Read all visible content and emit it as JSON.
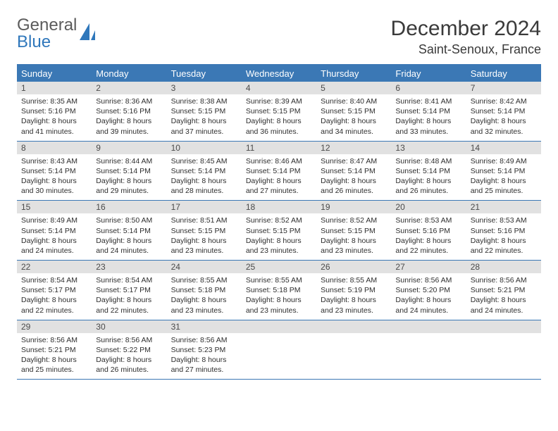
{
  "logo": {
    "text1": "General",
    "text2": "Blue"
  },
  "title": "December 2024",
  "location": "Saint-Senoux, France",
  "colors": {
    "header_bg": "#3b78b5",
    "daynum_bg": "#e1e1e1",
    "rule": "#3b78b5",
    "text": "#212121",
    "logo_gray": "#5b5b5b",
    "logo_blue": "#2f77bb"
  },
  "weekdays": [
    "Sunday",
    "Monday",
    "Tuesday",
    "Wednesday",
    "Thursday",
    "Friday",
    "Saturday"
  ],
  "weeks": [
    [
      {
        "n": "1",
        "sunrise": "Sunrise: 8:35 AM",
        "sunset": "Sunset: 5:16 PM",
        "day1": "Daylight: 8 hours",
        "day2": "and 41 minutes."
      },
      {
        "n": "2",
        "sunrise": "Sunrise: 8:36 AM",
        "sunset": "Sunset: 5:16 PM",
        "day1": "Daylight: 8 hours",
        "day2": "and 39 minutes."
      },
      {
        "n": "3",
        "sunrise": "Sunrise: 8:38 AM",
        "sunset": "Sunset: 5:15 PM",
        "day1": "Daylight: 8 hours",
        "day2": "and 37 minutes."
      },
      {
        "n": "4",
        "sunrise": "Sunrise: 8:39 AM",
        "sunset": "Sunset: 5:15 PM",
        "day1": "Daylight: 8 hours",
        "day2": "and 36 minutes."
      },
      {
        "n": "5",
        "sunrise": "Sunrise: 8:40 AM",
        "sunset": "Sunset: 5:15 PM",
        "day1": "Daylight: 8 hours",
        "day2": "and 34 minutes."
      },
      {
        "n": "6",
        "sunrise": "Sunrise: 8:41 AM",
        "sunset": "Sunset: 5:14 PM",
        "day1": "Daylight: 8 hours",
        "day2": "and 33 minutes."
      },
      {
        "n": "7",
        "sunrise": "Sunrise: 8:42 AM",
        "sunset": "Sunset: 5:14 PM",
        "day1": "Daylight: 8 hours",
        "day2": "and 32 minutes."
      }
    ],
    [
      {
        "n": "8",
        "sunrise": "Sunrise: 8:43 AM",
        "sunset": "Sunset: 5:14 PM",
        "day1": "Daylight: 8 hours",
        "day2": "and 30 minutes."
      },
      {
        "n": "9",
        "sunrise": "Sunrise: 8:44 AM",
        "sunset": "Sunset: 5:14 PM",
        "day1": "Daylight: 8 hours",
        "day2": "and 29 minutes."
      },
      {
        "n": "10",
        "sunrise": "Sunrise: 8:45 AM",
        "sunset": "Sunset: 5:14 PM",
        "day1": "Daylight: 8 hours",
        "day2": "and 28 minutes."
      },
      {
        "n": "11",
        "sunrise": "Sunrise: 8:46 AM",
        "sunset": "Sunset: 5:14 PM",
        "day1": "Daylight: 8 hours",
        "day2": "and 27 minutes."
      },
      {
        "n": "12",
        "sunrise": "Sunrise: 8:47 AM",
        "sunset": "Sunset: 5:14 PM",
        "day1": "Daylight: 8 hours",
        "day2": "and 26 minutes."
      },
      {
        "n": "13",
        "sunrise": "Sunrise: 8:48 AM",
        "sunset": "Sunset: 5:14 PM",
        "day1": "Daylight: 8 hours",
        "day2": "and 26 minutes."
      },
      {
        "n": "14",
        "sunrise": "Sunrise: 8:49 AM",
        "sunset": "Sunset: 5:14 PM",
        "day1": "Daylight: 8 hours",
        "day2": "and 25 minutes."
      }
    ],
    [
      {
        "n": "15",
        "sunrise": "Sunrise: 8:49 AM",
        "sunset": "Sunset: 5:14 PM",
        "day1": "Daylight: 8 hours",
        "day2": "and 24 minutes."
      },
      {
        "n": "16",
        "sunrise": "Sunrise: 8:50 AM",
        "sunset": "Sunset: 5:14 PM",
        "day1": "Daylight: 8 hours",
        "day2": "and 24 minutes."
      },
      {
        "n": "17",
        "sunrise": "Sunrise: 8:51 AM",
        "sunset": "Sunset: 5:15 PM",
        "day1": "Daylight: 8 hours",
        "day2": "and 23 minutes."
      },
      {
        "n": "18",
        "sunrise": "Sunrise: 8:52 AM",
        "sunset": "Sunset: 5:15 PM",
        "day1": "Daylight: 8 hours",
        "day2": "and 23 minutes."
      },
      {
        "n": "19",
        "sunrise": "Sunrise: 8:52 AM",
        "sunset": "Sunset: 5:15 PM",
        "day1": "Daylight: 8 hours",
        "day2": "and 23 minutes."
      },
      {
        "n": "20",
        "sunrise": "Sunrise: 8:53 AM",
        "sunset": "Sunset: 5:16 PM",
        "day1": "Daylight: 8 hours",
        "day2": "and 22 minutes."
      },
      {
        "n": "21",
        "sunrise": "Sunrise: 8:53 AM",
        "sunset": "Sunset: 5:16 PM",
        "day1": "Daylight: 8 hours",
        "day2": "and 22 minutes."
      }
    ],
    [
      {
        "n": "22",
        "sunrise": "Sunrise: 8:54 AM",
        "sunset": "Sunset: 5:17 PM",
        "day1": "Daylight: 8 hours",
        "day2": "and 22 minutes."
      },
      {
        "n": "23",
        "sunrise": "Sunrise: 8:54 AM",
        "sunset": "Sunset: 5:17 PM",
        "day1": "Daylight: 8 hours",
        "day2": "and 22 minutes."
      },
      {
        "n": "24",
        "sunrise": "Sunrise: 8:55 AM",
        "sunset": "Sunset: 5:18 PM",
        "day1": "Daylight: 8 hours",
        "day2": "and 23 minutes."
      },
      {
        "n": "25",
        "sunrise": "Sunrise: 8:55 AM",
        "sunset": "Sunset: 5:18 PM",
        "day1": "Daylight: 8 hours",
        "day2": "and 23 minutes."
      },
      {
        "n": "26",
        "sunrise": "Sunrise: 8:55 AM",
        "sunset": "Sunset: 5:19 PM",
        "day1": "Daylight: 8 hours",
        "day2": "and 23 minutes."
      },
      {
        "n": "27",
        "sunrise": "Sunrise: 8:56 AM",
        "sunset": "Sunset: 5:20 PM",
        "day1": "Daylight: 8 hours",
        "day2": "and 24 minutes."
      },
      {
        "n": "28",
        "sunrise": "Sunrise: 8:56 AM",
        "sunset": "Sunset: 5:21 PM",
        "day1": "Daylight: 8 hours",
        "day2": "and 24 minutes."
      }
    ],
    [
      {
        "n": "29",
        "sunrise": "Sunrise: 8:56 AM",
        "sunset": "Sunset: 5:21 PM",
        "day1": "Daylight: 8 hours",
        "day2": "and 25 minutes."
      },
      {
        "n": "30",
        "sunrise": "Sunrise: 8:56 AM",
        "sunset": "Sunset: 5:22 PM",
        "day1": "Daylight: 8 hours",
        "day2": "and 26 minutes."
      },
      {
        "n": "31",
        "sunrise": "Sunrise: 8:56 AM",
        "sunset": "Sunset: 5:23 PM",
        "day1": "Daylight: 8 hours",
        "day2": "and 27 minutes."
      },
      {
        "empty": true
      },
      {
        "empty": true
      },
      {
        "empty": true
      },
      {
        "empty": true
      }
    ]
  ]
}
